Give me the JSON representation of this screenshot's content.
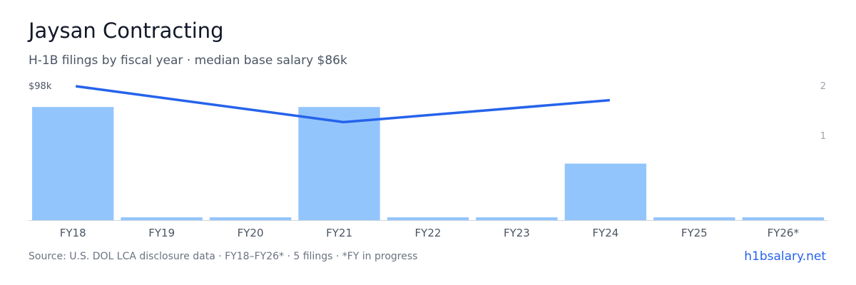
{
  "header": {
    "title": "Jaysan Contracting",
    "subtitle": "H-1B filings by fiscal year · median base salary $86k"
  },
  "footer": {
    "source": "Source: U.S. DOL LCA disclosure data · FY18–FY26* · 5 filings · *FY in progress",
    "brand": "h1bsalary.net"
  },
  "colors": {
    "bar": "#93c5fd",
    "line": "#2563eb",
    "axis_text": "#4b5563",
    "right_axis_text": "#9ca3af",
    "baseline": "#d1d5db"
  },
  "chart_data": {
    "type": "bar",
    "categories": [
      "FY18",
      "FY19",
      "FY20",
      "FY21",
      "FY22",
      "FY23",
      "FY24",
      "FY25",
      "FY26*"
    ],
    "series": [
      {
        "type": "bar",
        "axis": "right",
        "values": [
          2,
          0,
          0,
          2,
          0,
          0,
          1,
          0,
          0
        ]
      },
      {
        "type": "line",
        "axis": "left",
        "values": [
          98000,
          null,
          null,
          80000,
          null,
          null,
          91000,
          null,
          null
        ]
      }
    ],
    "left_axis": {
      "tick_label": "$98k"
    },
    "right_axis": {
      "ticks": [
        1,
        2
      ]
    },
    "grid": false
  }
}
